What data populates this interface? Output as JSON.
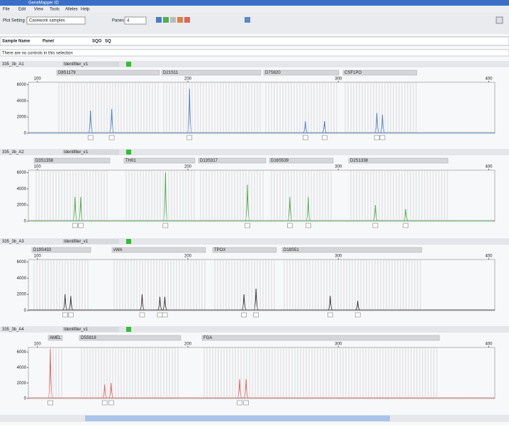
{
  "app_title": "GeneMapper ID",
  "menu": [
    "File",
    "Edit",
    "View",
    "Tools",
    "Alleles",
    "Help"
  ],
  "toolbar": {
    "plot_setting_label": "Plot Setting:",
    "plot_setting": "Casework samples",
    "panes_label": "Panes:",
    "panes": "4"
  },
  "table_headers": [
    "Sample Name",
    "Panel",
    "SQO",
    "SQ"
  ],
  "status": "There are no controls in this selection",
  "chart_data": [
    {
      "type": "peaks",
      "sample": "335_3b_A1",
      "panel": "Identifiler_v1",
      "color": "#4a7cc4",
      "markers": [
        "D8S1179",
        "D21S11",
        "D7S820",
        "CSF1PO"
      ],
      "x": [
        135.3,
        149.4,
        201.1,
        278.1,
        290.8,
        325.6,
        329.3
      ],
      "values": [
        2800,
        3000,
        5500,
        1500,
        1500,
        2500,
        2300
      ],
      "xlim": [
        94,
        404
      ],
      "xticks": [
        100,
        200,
        300,
        400
      ],
      "ylim": [
        0,
        6300
      ],
      "yticks": [
        0,
        2000,
        4000,
        6000
      ]
    },
    {
      "type": "peaks",
      "sample": "335_3b_A2",
      "panel": "Identifiler_v1",
      "color": "#4cae4c",
      "markers": [
        "D3S1358",
        "TH01",
        "D13S317",
        "D16S539",
        "D2S1338"
      ],
      "x": [
        125,
        128.8,
        185.1,
        239.6,
        267.8,
        280,
        324.6,
        344.8
      ],
      "values": [
        3000,
        3000,
        6000,
        4500,
        3000,
        3000,
        2000,
        1500
      ],
      "xlim": [
        94,
        404
      ],
      "xticks": [
        100,
        200,
        300,
        400
      ],
      "ylim": [
        0,
        6300
      ],
      "yticks": [
        0,
        2000,
        4000,
        6000
      ]
    },
    {
      "type": "peaks",
      "sample": "335_3b_A3",
      "panel": "Identifiler_v1",
      "color": "#333333",
      "markers": [
        "D19S433",
        "vWA",
        "TPOX",
        "D18S51"
      ],
      "x": [
        118.4,
        122.2,
        169.6,
        181.4,
        184.7,
        237.3,
        245.3,
        294.6,
        312.9
      ],
      "values": [
        2000,
        1800,
        2000,
        1700,
        1700,
        2000,
        2700,
        1800,
        1200
      ],
      "xlim": [
        94,
        404
      ],
      "xticks": [
        100,
        200,
        300,
        400
      ],
      "ylim": [
        0,
        6300
      ],
      "yticks": [
        0,
        2000,
        4000,
        6000
      ]
    },
    {
      "type": "peaks",
      "sample": "335_3b_A4",
      "panel": "Identifiler_v1",
      "color": "#e0645c",
      "markers": [
        "AMEL",
        "D5S818",
        "FGA"
      ],
      "x": [
        108.6,
        144.7,
        149,
        234.4,
        238.7
      ],
      "values": [
        6400,
        1800,
        2000,
        2500,
        2500
      ],
      "xlim": [
        94,
        404
      ],
      "xticks": [
        100,
        200,
        300,
        400
      ],
      "ylim": [
        0,
        6600
      ],
      "yticks": [
        0,
        2000,
        4000,
        6000
      ]
    }
  ]
}
